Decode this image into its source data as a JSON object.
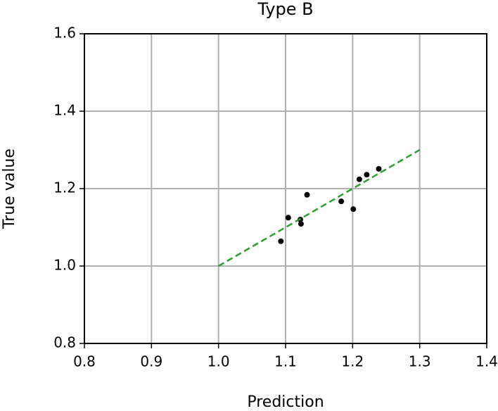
{
  "chart_data": {
    "type": "scatter",
    "title": "Type B",
    "x_label": "Prediction",
    "y_label": "True value",
    "xlim": [
      0.8,
      1.4
    ],
    "ylim": [
      0.8,
      1.6
    ],
    "xticks": [
      0.8,
      0.9,
      {
        "value": 1,
        "label": "1.0"
      },
      1.1,
      1.2,
      1.3,
      1.4
    ],
    "yticks": [
      0.8,
      {
        "value": 1,
        "label": "1.0"
      },
      1.2,
      1.4,
      1.6
    ],
    "grid": true,
    "series": [
      {
        "type": "scatter",
        "color": "#000000",
        "x": [
          1.093,
          1.104,
          1.122,
          1.123,
          1.132,
          1.183,
          1.201,
          1.21,
          1.221,
          1.239
        ],
        "values": [
          1.064,
          1.125,
          1.12,
          1.109,
          1.184,
          1.167,
          1.147,
          1.224,
          1.236,
          1.251
        ]
      },
      {
        "type": "line",
        "color": "#2ca02c",
        "dashed": true,
        "x": [
          1,
          1.3
        ],
        "values": [
          1,
          1.3
        ]
      }
    ]
  }
}
